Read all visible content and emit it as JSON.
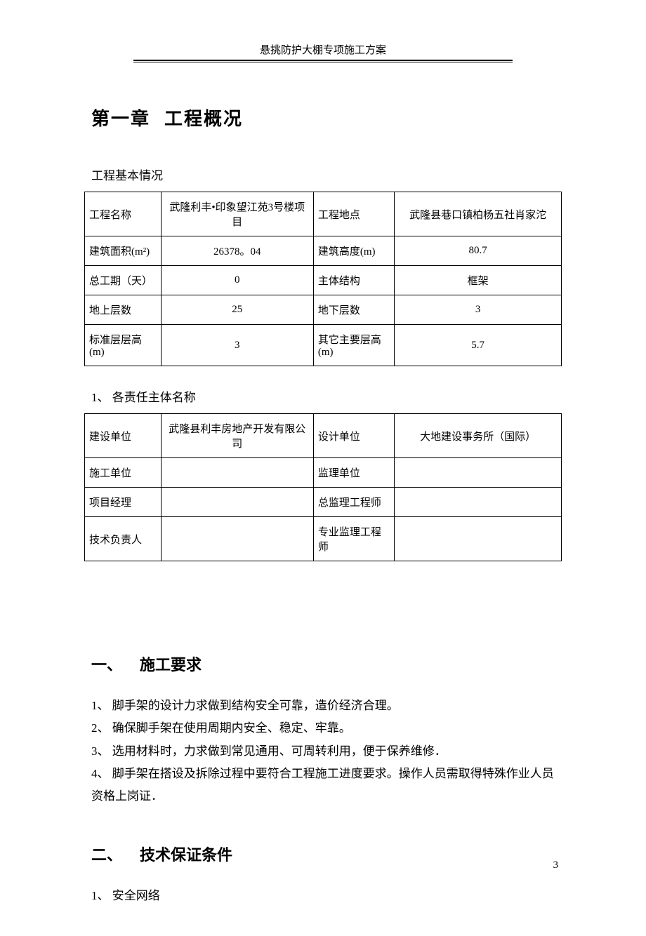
{
  "header": "悬挑防护大棚专项施工方案",
  "chapter": {
    "number": "第一章",
    "title": "工程概况"
  },
  "intro_text": "工程基本情况",
  "table1": {
    "rows": [
      {
        "k1": "工程名称",
        "v1": "武隆利丰•印象望江苑3号楼项目",
        "k2": "工程地点",
        "v2": "武隆县巷口镇柏杨五社肖家沱"
      },
      {
        "k1": "建筑面积(m²)",
        "v1": "26378。04",
        "k2": "建筑高度(m)",
        "v2": "80.7"
      },
      {
        "k1": "总工期（天）",
        "v1": "0",
        "k2": "主体结构",
        "v2": "框架"
      },
      {
        "k1": "地上层数",
        "v1": "25",
        "k2": "地下层数",
        "v2": "3"
      },
      {
        "k1": "标准层层高(m)",
        "v1": "3",
        "k2": "其它主要层高(m)",
        "v2": "5.7"
      }
    ]
  },
  "list1_title": "1、 各责任主体名称",
  "table2": {
    "rows": [
      {
        "k1": "建设单位",
        "v1": "武隆县利丰房地产开发有限公司",
        "k2": "设计单位",
        "v2": "大地建设事务所（国际）"
      },
      {
        "k1": "施工单位",
        "v1": "",
        "k2": "监理单位",
        "v2": ""
      },
      {
        "k1": "项目经理",
        "v1": "",
        "k2": "总监理工程师",
        "v2": ""
      },
      {
        "k1": "技术负责人",
        "v1": "",
        "k2": "专业监理工程师",
        "v2": ""
      }
    ]
  },
  "section1": {
    "num": "一、",
    "title": "施工要求",
    "lines": {
      "l1": "1、 脚手架的设计力求做到结构安全可靠，造价经济合理。",
      "l2": "2、 确保脚手架在使用周期内安全、稳定、牢靠。",
      "l3": "3、 选用材料时，力求做到常见通用、可周转利用，便于保养维修．",
      "l4": "4、 脚手架在搭设及拆除过程中要符合工程施工进度要求。操作人员需取得特殊作业人员资格上岗证．"
    }
  },
  "section2": {
    "num": "二、",
    "title": "技术保证条件",
    "lines": {
      "l1": "1、 安全网络"
    }
  },
  "page_number": "3",
  "styles": {
    "background": "#ffffff",
    "text_color": "#000000",
    "border_color": "#000000",
    "body_fontsize": 17,
    "table_fontsize": 15,
    "chapter_fontsize": 26,
    "heading_fontsize": 22
  }
}
